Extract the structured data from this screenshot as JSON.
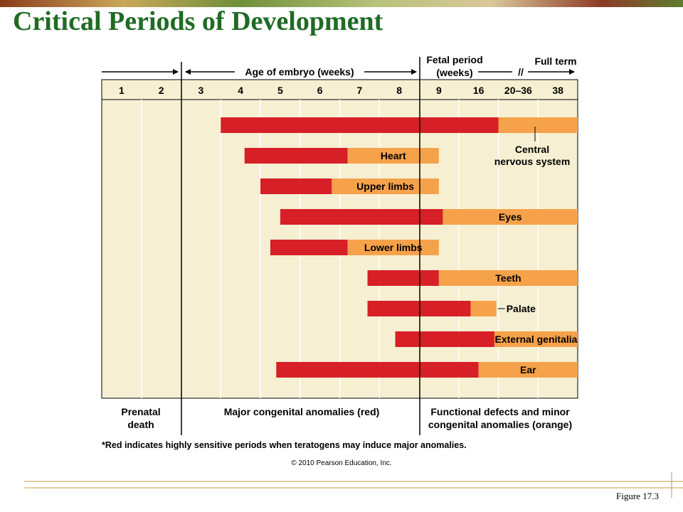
{
  "title": "Critical Periods of Development",
  "header": {
    "embryo_label": "Age of embryo (weeks)",
    "fetal_label_line1": "Fetal period",
    "fetal_label_line2": "(weeks)",
    "full_term_label": "Full term",
    "break_mark": "//"
  },
  "columns": [
    "1",
    "2",
    "3",
    "4",
    "5",
    "6",
    "7",
    "8",
    "9",
    "16",
    "20–36",
    "38"
  ],
  "rows": [
    {
      "label": "Central nervous system",
      "label_line1": "Central",
      "label_line2": "nervous system",
      "red_start": 3,
      "red_end": 10,
      "orange_end": 12
    },
    {
      "label": "Heart",
      "red_start": 3.6,
      "red_end": 6.2,
      "orange_end": 8.5
    },
    {
      "label": "Upper limbs",
      "red_start": 4.0,
      "red_end": 5.8,
      "orange_end": 8.5
    },
    {
      "label": "Eyes",
      "red_start": 4.5,
      "red_end": 8.6,
      "orange_end": 12
    },
    {
      "label": "Lower limbs",
      "red_start": 4.25,
      "red_end": 6.2,
      "orange_end": 8.5
    },
    {
      "label": "Teeth",
      "red_start": 6.7,
      "red_end": 8.5,
      "orange_end": 12
    },
    {
      "label": "Palate",
      "red_start": 6.7,
      "red_end": 9.3,
      "orange_end": 9.95
    },
    {
      "label": "External genitalia",
      "red_start": 7.4,
      "red_end": 9.9,
      "orange_end": 12
    },
    {
      "label": "Ear",
      "red_start": 4.4,
      "red_end": 9.5,
      "orange_end": 12
    }
  ],
  "footer": {
    "prenatal_line1": "Prenatal",
    "prenatal_line2": "death",
    "major_label": "Major congenital anomalies (red)",
    "functional_line1": "Functional defects and minor",
    "functional_line2": "congenital anomalies (orange)",
    "note": "*Red indicates highly sensitive periods when teratogens may induce major anomalies.",
    "copyright": "© 2010 Pearson Education, Inc."
  },
  "caption": "Figure 17.3",
  "colors": {
    "title": "#1f6b24",
    "panel": "#f6efd2",
    "red": "#d71f27",
    "orange": "#f6a24a",
    "decor_line": "#c89a3c"
  }
}
